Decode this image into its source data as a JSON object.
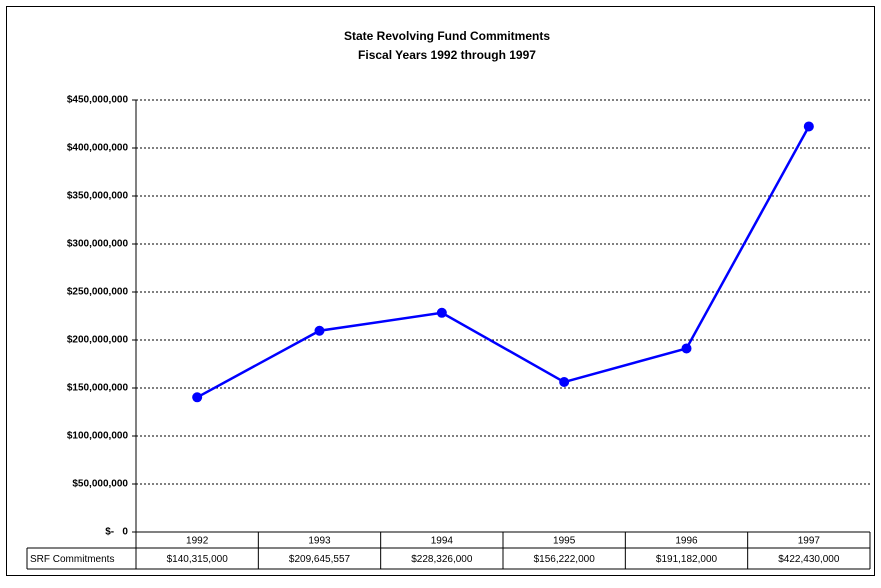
{
  "chart_data": {
    "type": "line",
    "title": "State Revolving Fund Commitments",
    "subtitle": "Fiscal Years 1992 through 1997",
    "categories": [
      "1992",
      "1993",
      "1994",
      "1995",
      "1996",
      "1997"
    ],
    "series": [
      {
        "name": "SRF Commitments",
        "color": "#0000ff",
        "values": [
          140315000,
          209645557,
          228326000,
          156222000,
          191182000,
          422430000
        ],
        "value_labels": [
          "$140,315,000",
          "$209,645,557",
          "$228,326,000",
          "$156,222,000",
          "$191,182,000",
          "$422,430,000"
        ]
      }
    ],
    "ylim": [
      0,
      450000000
    ],
    "yticks": [
      {
        "value": 0,
        "label": "$-   0"
      },
      {
        "value": 50000000,
        "label": "$50,000,000"
      },
      {
        "value": 100000000,
        "label": "$100,000,000"
      },
      {
        "value": 150000000,
        "label": "$150,000,000"
      },
      {
        "value": 200000000,
        "label": "$200,000,000"
      },
      {
        "value": 250000000,
        "label": "$250,000,000"
      },
      {
        "value": 300000000,
        "label": "$300,000,000"
      },
      {
        "value": 350000000,
        "label": "$350,000,000"
      },
      {
        "value": 400000000,
        "label": "$400,000,000"
      },
      {
        "value": 450000000,
        "label": "$450,000,000"
      }
    ],
    "grid": true
  }
}
